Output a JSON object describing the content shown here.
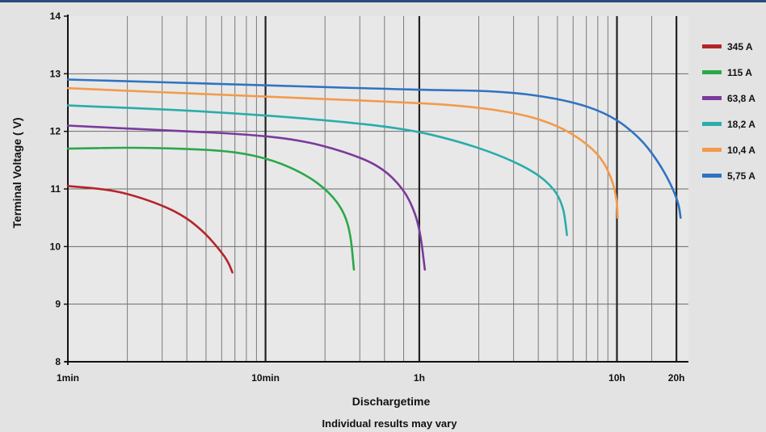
{
  "chart_data": {
    "type": "line",
    "xlabel": "Dischargetime",
    "ylabel": "Terminal Voltage ( V)",
    "footnote": "Individual results may vary",
    "x_scale": "log",
    "x_unit": "minutes",
    "xlim": [
      1,
      1380
    ],
    "ylim": [
      8,
      14
    ],
    "x_ticks": [
      {
        "value": 1,
        "label": "1min"
      },
      {
        "value": 10,
        "label": "10min"
      },
      {
        "value": 60,
        "label": "1h"
      },
      {
        "value": 600,
        "label": "10h"
      },
      {
        "value": 1200,
        "label": "20h"
      }
    ],
    "y_ticks": [
      8,
      9,
      10,
      11,
      12,
      13,
      14
    ],
    "grid": true,
    "legend_position": "right",
    "series": [
      {
        "name": "345 A",
        "color": "#b5242a",
        "points": [
          [
            1,
            11.05
          ],
          [
            1.5,
            11.0
          ],
          [
            2,
            10.92
          ],
          [
            3,
            10.72
          ],
          [
            4,
            10.5
          ],
          [
            5,
            10.22
          ],
          [
            6,
            9.9
          ],
          [
            6.5,
            9.72
          ],
          [
            6.8,
            9.55
          ]
        ]
      },
      {
        "name": "115 A",
        "color": "#2aa84a",
        "points": [
          [
            1,
            11.7
          ],
          [
            2,
            11.72
          ],
          [
            4,
            11.7
          ],
          [
            7,
            11.65
          ],
          [
            11,
            11.5
          ],
          [
            16,
            11.25
          ],
          [
            21,
            10.95
          ],
          [
            25,
            10.6
          ],
          [
            27,
            10.2
          ],
          [
            28,
            9.6
          ]
        ]
      },
      {
        "name": "63,8 A",
        "color": "#7b3a9c",
        "points": [
          [
            1,
            12.1
          ],
          [
            3,
            12.02
          ],
          [
            8,
            11.95
          ],
          [
            15,
            11.85
          ],
          [
            25,
            11.65
          ],
          [
            38,
            11.4
          ],
          [
            50,
            11.0
          ],
          [
            57,
            10.6
          ],
          [
            61,
            10.2
          ],
          [
            64,
            9.6
          ]
        ]
      },
      {
        "name": "18,2 A",
        "color": "#2aacaa",
        "points": [
          [
            1,
            12.45
          ],
          [
            5,
            12.35
          ],
          [
            20,
            12.2
          ],
          [
            50,
            12.05
          ],
          [
            90,
            11.85
          ],
          [
            150,
            11.6
          ],
          [
            230,
            11.3
          ],
          [
            290,
            11.0
          ],
          [
            320,
            10.7
          ],
          [
            330,
            10.4
          ],
          [
            335,
            10.2
          ]
        ]
      },
      {
        "name": "10,4 A",
        "color": "#f39a4a",
        "points": [
          [
            1,
            12.75
          ],
          [
            10,
            12.6
          ],
          [
            40,
            12.52
          ],
          [
            100,
            12.45
          ],
          [
            200,
            12.3
          ],
          [
            300,
            12.1
          ],
          [
            400,
            11.85
          ],
          [
            500,
            11.55
          ],
          [
            570,
            11.15
          ],
          [
            600,
            10.8
          ],
          [
            605,
            10.5
          ]
        ]
      },
      {
        "name": "5,75 A",
        "color": "#2f73c2",
        "points": [
          [
            1,
            12.9
          ],
          [
            10,
            12.8
          ],
          [
            60,
            12.72
          ],
          [
            160,
            12.7
          ],
          [
            330,
            12.55
          ],
          [
            550,
            12.3
          ],
          [
            780,
            11.9
          ],
          [
            960,
            11.5
          ],
          [
            1120,
            11.1
          ],
          [
            1230,
            10.75
          ],
          [
            1260,
            10.5
          ]
        ]
      }
    ]
  }
}
